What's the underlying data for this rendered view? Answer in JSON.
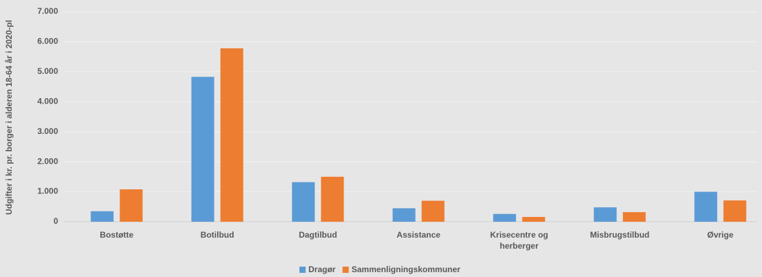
{
  "chart_data": {
    "type": "bar",
    "ylabel": "Udgifter i kr. pr. borger i alderen 18-64 år i 2020-pl",
    "categories": [
      "Bostøtte",
      "Botilbud",
      "Dagtilbud",
      "Assistance",
      "Krisecentre og herberger",
      "Misbrugstilbud",
      "Øvrige"
    ],
    "series": [
      {
        "name": "Dragør",
        "color": "#5b9bd5",
        "values": [
          350,
          4830,
          1320,
          450,
          260,
          480,
          1000
        ]
      },
      {
        "name": "Sammenligningskommuner",
        "color": "#ed7d31",
        "values": [
          1080,
          5780,
          1500,
          700,
          160,
          320,
          710
        ]
      }
    ],
    "ylim": [
      0,
      7000
    ],
    "yticks": [
      0,
      {
        "value": 1000,
        "label": "1.000"
      },
      {
        "value": 2000,
        "label": "2.000"
      },
      {
        "value": 3000,
        "label": "3.000"
      },
      {
        "value": 4000,
        "label": "4.000"
      },
      {
        "value": 5000,
        "label": "5.000"
      },
      {
        "value": 6000,
        "label": "6.000"
      },
      {
        "value": 7000,
        "label": "7.000"
      }
    ],
    "grid": true,
    "legend": "bottom"
  }
}
